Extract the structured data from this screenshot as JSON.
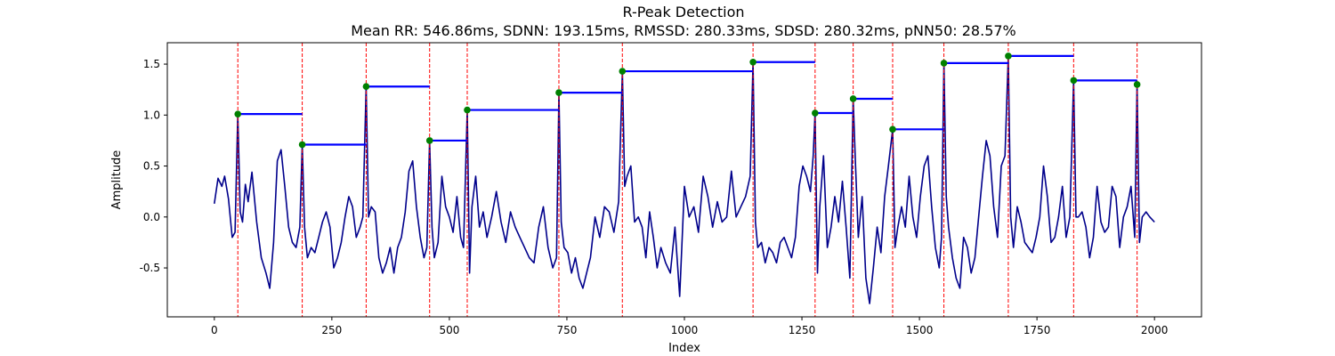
{
  "chart_data": {
    "type": "line",
    "title": "R-Peak Detection",
    "subtitle": "Mean RR: 546.86ms, SDNN: 193.15ms, RMSSD: 280.33ms, SDSD: 280.32ms, pNN50: 28.57%",
    "xlabel": "Index",
    "ylabel": "Amplitude",
    "xlim": [
      -100,
      2100
    ],
    "ylim": [
      -0.98,
      1.71
    ],
    "xticks": [
      0,
      250,
      500,
      750,
      1000,
      1250,
      1500,
      1750,
      2000
    ],
    "yticks": [
      -0.5,
      0.0,
      0.5,
      1.0,
      1.5
    ],
    "grid": false,
    "colors": {
      "signal": "#00008b",
      "peak_line": "#ff0000",
      "peak_marker": "#008000",
      "rr_interval": "#0000ff"
    },
    "peaks": [
      {
        "x": 50,
        "y": 1.01
      },
      {
        "x": 187,
        "y": 0.71
      },
      {
        "x": 323,
        "y": 1.28
      },
      {
        "x": 458,
        "y": 0.75
      },
      {
        "x": 538,
        "y": 1.05
      },
      {
        "x": 733,
        "y": 1.22
      },
      {
        "x": 868,
        "y": 1.43
      },
      {
        "x": 1146,
        "y": 1.52
      },
      {
        "x": 1278,
        "y": 1.02
      },
      {
        "x": 1359,
        "y": 1.16
      },
      {
        "x": 1443,
        "y": 0.86
      },
      {
        "x": 1552,
        "y": 1.51
      },
      {
        "x": 1689,
        "y": 1.58
      },
      {
        "x": 1828,
        "y": 1.34
      },
      {
        "x": 1963,
        "y": 1.3
      }
    ],
    "signal": {
      "x": [
        0,
        8,
        16,
        22,
        30,
        38,
        44,
        50,
        55,
        60,
        66,
        72,
        80,
        90,
        100,
        110,
        118,
        126,
        134,
        142,
        150,
        158,
        166,
        174,
        182,
        187,
        192,
        198,
        206,
        214,
        222,
        230,
        238,
        246,
        254,
        262,
        270,
        278,
        286,
        294,
        302,
        310,
        316,
        323,
        328,
        334,
        342,
        350,
        358,
        366,
        374,
        382,
        390,
        398,
        406,
        414,
        422,
        430,
        438,
        446,
        452,
        458,
        463,
        468,
        476,
        484,
        492,
        500,
        508,
        516,
        524,
        530,
        538,
        543,
        548,
        556,
        564,
        572,
        580,
        590,
        600,
        610,
        620,
        630,
        640,
        650,
        660,
        670,
        680,
        690,
        700,
        710,
        720,
        728,
        733,
        738,
        744,
        752,
        760,
        768,
        776,
        784,
        792,
        800,
        810,
        820,
        830,
        840,
        850,
        860,
        868,
        873,
        878,
        886,
        894,
        902,
        910,
        918,
        926,
        934,
        942,
        950,
        960,
        970,
        980,
        990,
        1000,
        1010,
        1020,
        1030,
        1040,
        1050,
        1060,
        1070,
        1080,
        1090,
        1100,
        1110,
        1120,
        1130,
        1140,
        1146,
        1151,
        1156,
        1164,
        1172,
        1180,
        1188,
        1196,
        1204,
        1212,
        1220,
        1228,
        1236,
        1244,
        1252,
        1260,
        1268,
        1274,
        1278,
        1283,
        1288,
        1296,
        1304,
        1312,
        1320,
        1328,
        1336,
        1344,
        1352,
        1359,
        1364,
        1370,
        1378,
        1386,
        1394,
        1402,
        1410,
        1418,
        1426,
        1434,
        1443,
        1448,
        1454,
        1462,
        1470,
        1478,
        1486,
        1494,
        1502,
        1510,
        1518,
        1526,
        1534,
        1542,
        1547,
        1552,
        1557,
        1562,
        1570,
        1578,
        1586,
        1594,
        1602,
        1610,
        1618,
        1626,
        1634,
        1642,
        1650,
        1658,
        1666,
        1674,
        1682,
        1689,
        1694,
        1700,
        1708,
        1716,
        1724,
        1732,
        1740,
        1748,
        1756,
        1764,
        1772,
        1780,
        1788,
        1796,
        1804,
        1812,
        1820,
        1828,
        1833,
        1838,
        1846,
        1854,
        1862,
        1870,
        1878,
        1886,
        1894,
        1902,
        1910,
        1918,
        1926,
        1934,
        1942,
        1950,
        1958,
        1963,
        1968,
        1974,
        1982,
        1990,
        2000
      ],
      "y": [
        0.13,
        0.38,
        0.3,
        0.4,
        0.18,
        -0.2,
        -0.15,
        1.01,
        0.05,
        -0.05,
        0.32,
        0.15,
        0.44,
        -0.05,
        -0.4,
        -0.55,
        -0.7,
        -0.25,
        0.55,
        0.66,
        0.3,
        -0.1,
        -0.25,
        -0.3,
        -0.1,
        0.71,
        -0.1,
        -0.4,
        -0.3,
        -0.35,
        -0.2,
        -0.05,
        0.05,
        -0.1,
        -0.5,
        -0.4,
        -0.25,
        0.0,
        0.2,
        0.1,
        -0.2,
        -0.1,
        0.0,
        1.28,
        0.0,
        0.1,
        0.05,
        -0.4,
        -0.55,
        -0.45,
        -0.3,
        -0.55,
        -0.3,
        -0.2,
        0.05,
        0.45,
        0.55,
        0.1,
        -0.2,
        -0.4,
        -0.3,
        0.75,
        -0.1,
        -0.4,
        -0.25,
        0.4,
        0.1,
        0.0,
        -0.15,
        0.2,
        -0.2,
        -0.3,
        1.05,
        -0.55,
        0.1,
        0.4,
        -0.1,
        0.05,
        -0.2,
        0.0,
        0.25,
        -0.05,
        -0.25,
        0.05,
        -0.1,
        -0.2,
        -0.3,
        -0.4,
        -0.45,
        -0.1,
        0.1,
        -0.3,
        -0.5,
        -0.4,
        1.22,
        -0.05,
        -0.3,
        -0.35,
        -0.55,
        -0.4,
        -0.6,
        -0.7,
        -0.55,
        -0.4,
        0.0,
        -0.2,
        0.1,
        0.05,
        -0.15,
        0.15,
        1.43,
        0.3,
        0.4,
        0.5,
        -0.05,
        0.0,
        -0.1,
        -0.4,
        0.05,
        -0.2,
        -0.5,
        -0.3,
        -0.45,
        -0.55,
        -0.1,
        -0.78,
        0.3,
        0.0,
        0.1,
        -0.15,
        0.4,
        0.2,
        -0.1,
        0.15,
        -0.05,
        0.0,
        0.45,
        0.0,
        0.1,
        0.2,
        0.4,
        1.52,
        -0.05,
        -0.3,
        -0.25,
        -0.45,
        -0.3,
        -0.35,
        -0.45,
        -0.25,
        -0.2,
        -0.3,
        -0.4,
        -0.2,
        0.3,
        0.5,
        0.4,
        0.25,
        0.6,
        1.02,
        -0.55,
        0.1,
        0.6,
        -0.3,
        -0.1,
        0.2,
        -0.05,
        0.35,
        -0.1,
        -0.6,
        1.16,
        0.5,
        -0.2,
        0.2,
        -0.6,
        -0.85,
        -0.5,
        -0.1,
        -0.35,
        0.2,
        0.5,
        0.86,
        -0.3,
        -0.1,
        0.1,
        -0.1,
        0.4,
        0.0,
        -0.2,
        0.2,
        0.5,
        0.6,
        0.1,
        -0.3,
        -0.5,
        -0.2,
        1.51,
        0.2,
        -0.1,
        -0.4,
        -0.6,
        -0.7,
        -0.2,
        -0.3,
        -0.55,
        -0.4,
        0.0,
        0.4,
        0.75,
        0.6,
        0.1,
        -0.2,
        0.5,
        0.6,
        1.58,
        0.0,
        -0.3,
        0.1,
        -0.05,
        -0.25,
        -0.3,
        -0.35,
        -0.2,
        0.0,
        0.5,
        0.2,
        -0.25,
        -0.2,
        0.0,
        0.3,
        -0.2,
        0.0,
        1.34,
        0.0,
        0.0,
        0.05,
        -0.1,
        -0.4,
        -0.2,
        0.3,
        -0.05,
        -0.15,
        -0.1,
        0.3,
        0.2,
        -0.3,
        0.0,
        0.1,
        0.3,
        -0.2,
        1.3,
        -0.25,
        0.0,
        0.05,
        0.0,
        -0.05
      ]
    }
  }
}
